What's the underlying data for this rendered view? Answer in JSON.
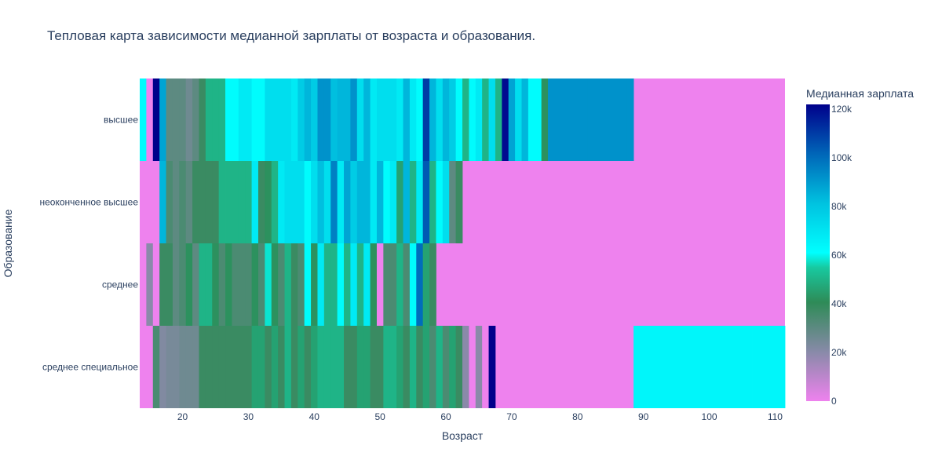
{
  "chart_data": {
    "type": "heatmap",
    "title": "Тепловая карта зависимости медианной зарплаты от возраста и образования.",
    "xlabel": "Возраст",
    "ylabel": "Образование",
    "colorbar_title": "Медианная зарплата",
    "x_range": [
      13.5,
      111.5
    ],
    "x_ticks": [
      20,
      30,
      40,
      50,
      60,
      70,
      80,
      90,
      100,
      110
    ],
    "x_tick_labels": [
      "20",
      "30",
      "40",
      "50",
      "60",
      "70",
      "80",
      "90",
      "100",
      "110"
    ],
    "y_categories": [
      "высшее",
      "неоконченное высшее",
      "среднее",
      "среднее специальное"
    ],
    "colorbar_range": [
      0,
      122000
    ],
    "colorbar_ticks": [
      0,
      20000,
      40000,
      60000,
      80000,
      100000,
      120000
    ],
    "colorbar_tick_labels": [
      "0",
      "20k",
      "40k",
      "60k",
      "80k",
      "100k",
      "120k"
    ],
    "colorscale": [
      [
        0.0,
        "#ee82ee"
      ],
      [
        0.167,
        "#888aa8"
      ],
      [
        0.333,
        "#2e8b57"
      ],
      [
        0.45,
        "#17c9a0"
      ],
      [
        0.5,
        "#00ffff"
      ],
      [
        0.667,
        "#00c2e0"
      ],
      [
        0.833,
        "#0066b8"
      ],
      [
        1.0,
        "#00008b"
      ]
    ],
    "missing_color": "#ee82ee",
    "grid": false,
    "legend": "colorbar-right",
    "rows": [
      {
        "category": "высшее",
        "cells": [
          [
            14,
            62000
          ],
          [
            15,
            0
          ],
          [
            16,
            122000
          ],
          [
            17,
            88000
          ],
          [
            18,
            30000
          ],
          [
            19,
            30000
          ],
          [
            20,
            30000
          ],
          [
            21,
            26000
          ],
          [
            22,
            30000
          ],
          [
            23,
            38000
          ],
          [
            24,
            50000
          ],
          [
            25,
            50000
          ],
          [
            26,
            50000
          ],
          [
            27,
            62000
          ],
          [
            28,
            62000
          ],
          [
            29,
            68000
          ],
          [
            30,
            68000
          ],
          [
            31,
            62000
          ],
          [
            32,
            62000
          ],
          [
            33,
            72000
          ],
          [
            34,
            72000
          ],
          [
            35,
            72000
          ],
          [
            36,
            72000
          ],
          [
            37,
            68000
          ],
          [
            38,
            78000
          ],
          [
            39,
            84000
          ],
          [
            40,
            78000
          ],
          [
            41,
            92000
          ],
          [
            42,
            92000
          ],
          [
            43,
            82000
          ],
          [
            44,
            84000
          ],
          [
            45,
            84000
          ],
          [
            46,
            92000
          ],
          [
            47,
            72000
          ],
          [
            48,
            84000
          ],
          [
            49,
            68000
          ],
          [
            50,
            72000
          ],
          [
            51,
            72000
          ],
          [
            52,
            72000
          ],
          [
            53,
            68000
          ],
          [
            54,
            84000
          ],
          [
            55,
            68000
          ],
          [
            56,
            62000
          ],
          [
            57,
            110000
          ],
          [
            58,
            84000
          ],
          [
            59,
            72000
          ],
          [
            60,
            84000
          ],
          [
            61,
            78000
          ],
          [
            62,
            62000
          ],
          [
            63,
            50000
          ],
          [
            64,
            62000
          ],
          [
            65,
            68000
          ],
          [
            66,
            50000
          ],
          [
            67,
            72000
          ],
          [
            68,
            50000
          ],
          [
            69,
            120000
          ],
          [
            70,
            88000
          ],
          [
            71,
            72000
          ],
          [
            72,
            84000
          ],
          [
            73,
            62000
          ],
          [
            74,
            62000
          ],
          [
            75,
            42000
          ],
          [
            76,
            92000
          ],
          [
            77,
            92000
          ],
          [
            78,
            92000
          ],
          [
            79,
            92000
          ],
          [
            80,
            92000
          ],
          [
            81,
            92000
          ],
          [
            82,
            92000
          ],
          [
            83,
            92000
          ],
          [
            84,
            92000
          ],
          [
            85,
            92000
          ],
          [
            86,
            92000
          ],
          [
            87,
            92000
          ],
          [
            88,
            92000
          ]
        ]
      },
      {
        "category": "неоконченное высшее",
        "cells": [
          [
            17,
            84000
          ],
          [
            18,
            34000
          ],
          [
            19,
            30000
          ],
          [
            20,
            34000
          ],
          [
            21,
            30000
          ],
          [
            22,
            38000
          ],
          [
            23,
            38000
          ],
          [
            24,
            38000
          ],
          [
            25,
            38000
          ],
          [
            26,
            50000
          ],
          [
            27,
            50000
          ],
          [
            28,
            50000
          ],
          [
            29,
            50000
          ],
          [
            30,
            50000
          ],
          [
            31,
            68000
          ],
          [
            32,
            38000
          ],
          [
            33,
            42000
          ],
          [
            34,
            50000
          ],
          [
            35,
            68000
          ],
          [
            36,
            72000
          ],
          [
            37,
            72000
          ],
          [
            38,
            72000
          ],
          [
            39,
            62000
          ],
          [
            40,
            72000
          ],
          [
            41,
            82000
          ],
          [
            42,
            72000
          ],
          [
            43,
            96000
          ],
          [
            44,
            68000
          ],
          [
            45,
            88000
          ],
          [
            46,
            78000
          ],
          [
            47,
            84000
          ],
          [
            48,
            84000
          ],
          [
            49,
            68000
          ],
          [
            50,
            84000
          ],
          [
            51,
            62000
          ],
          [
            52,
            68000
          ],
          [
            53,
            46000
          ],
          [
            54,
            84000
          ],
          [
            55,
            50000
          ],
          [
            56,
            68000
          ],
          [
            57,
            104000
          ],
          [
            58,
            50000
          ],
          [
            59,
            62000
          ],
          [
            60,
            72000
          ],
          [
            61,
            30000
          ],
          [
            62,
            38000
          ]
        ]
      },
      {
        "category": "среднее",
        "cells": [
          [
            15,
            20000
          ],
          [
            16,
            0
          ],
          [
            17,
            38000
          ],
          [
            18,
            38000
          ],
          [
            19,
            30000
          ],
          [
            20,
            34000
          ],
          [
            21,
            42000
          ],
          [
            22,
            30000
          ],
          [
            23,
            50000
          ],
          [
            24,
            50000
          ],
          [
            25,
            42000
          ],
          [
            26,
            34000
          ],
          [
            27,
            42000
          ],
          [
            28,
            34000
          ],
          [
            29,
            34000
          ],
          [
            30,
            34000
          ],
          [
            31,
            42000
          ],
          [
            32,
            34000
          ],
          [
            33,
            58000
          ],
          [
            34,
            42000
          ],
          [
            35,
            34000
          ],
          [
            36,
            50000
          ],
          [
            37,
            38000
          ],
          [
            38,
            34000
          ],
          [
            39,
            62000
          ],
          [
            40,
            42000
          ],
          [
            41,
            68000
          ],
          [
            42,
            50000
          ],
          [
            43,
            50000
          ],
          [
            44,
            62000
          ],
          [
            45,
            50000
          ],
          [
            46,
            68000
          ],
          [
            47,
            50000
          ],
          [
            48,
            68000
          ],
          [
            49,
            42000
          ],
          [
            50,
            0
          ],
          [
            51,
            34000
          ],
          [
            52,
            34000
          ],
          [
            53,
            50000
          ],
          [
            54,
            34000
          ],
          [
            55,
            62000
          ],
          [
            56,
            100000
          ],
          [
            57,
            46000
          ],
          [
            58,
            38000
          ]
        ]
      },
      {
        "category": "среднее специальное",
        "cells": [
          [
            16,
            34000
          ],
          [
            17,
            22000
          ],
          [
            18,
            24000
          ],
          [
            19,
            24000
          ],
          [
            20,
            26000
          ],
          [
            21,
            26000
          ],
          [
            22,
            26000
          ],
          [
            23,
            38000
          ],
          [
            24,
            38000
          ],
          [
            25,
            38000
          ],
          [
            26,
            38000
          ],
          [
            27,
            38000
          ],
          [
            28,
            38000
          ],
          [
            29,
            38000
          ],
          [
            30,
            38000
          ],
          [
            31,
            46000
          ],
          [
            32,
            46000
          ],
          [
            33,
            38000
          ],
          [
            34,
            46000
          ],
          [
            35,
            38000
          ],
          [
            36,
            50000
          ],
          [
            37,
            38000
          ],
          [
            38,
            46000
          ],
          [
            39,
            38000
          ],
          [
            40,
            46000
          ],
          [
            41,
            50000
          ],
          [
            42,
            50000
          ],
          [
            43,
            50000
          ],
          [
            44,
            50000
          ],
          [
            45,
            38000
          ],
          [
            46,
            38000
          ],
          [
            47,
            46000
          ],
          [
            48,
            46000
          ],
          [
            49,
            38000
          ],
          [
            50,
            38000
          ],
          [
            51,
            50000
          ],
          [
            52,
            50000
          ],
          [
            53,
            46000
          ],
          [
            54,
            38000
          ],
          [
            55,
            50000
          ],
          [
            56,
            38000
          ],
          [
            57,
            46000
          ],
          [
            58,
            34000
          ],
          [
            59,
            50000
          ],
          [
            60,
            34000
          ],
          [
            61,
            46000
          ],
          [
            62,
            38000
          ],
          [
            63,
            20000
          ],
          [
            64,
            0
          ],
          [
            65,
            20000
          ],
          [
            66,
            0
          ],
          [
            67,
            122000
          ],
          [
            89,
            64000
          ],
          [
            90,
            64000
          ],
          [
            91,
            64000
          ],
          [
            92,
            64000
          ],
          [
            93,
            64000
          ],
          [
            94,
            64000
          ],
          [
            95,
            64000
          ],
          [
            96,
            64000
          ],
          [
            97,
            64000
          ],
          [
            98,
            64000
          ],
          [
            99,
            64000
          ],
          [
            100,
            64000
          ],
          [
            101,
            64000
          ],
          [
            102,
            64000
          ],
          [
            103,
            64000
          ],
          [
            104,
            64000
          ],
          [
            105,
            64000
          ],
          [
            106,
            64000
          ],
          [
            107,
            64000
          ],
          [
            108,
            64000
          ],
          [
            109,
            64000
          ],
          [
            110,
            64000
          ],
          [
            111,
            64000
          ]
        ]
      }
    ]
  }
}
